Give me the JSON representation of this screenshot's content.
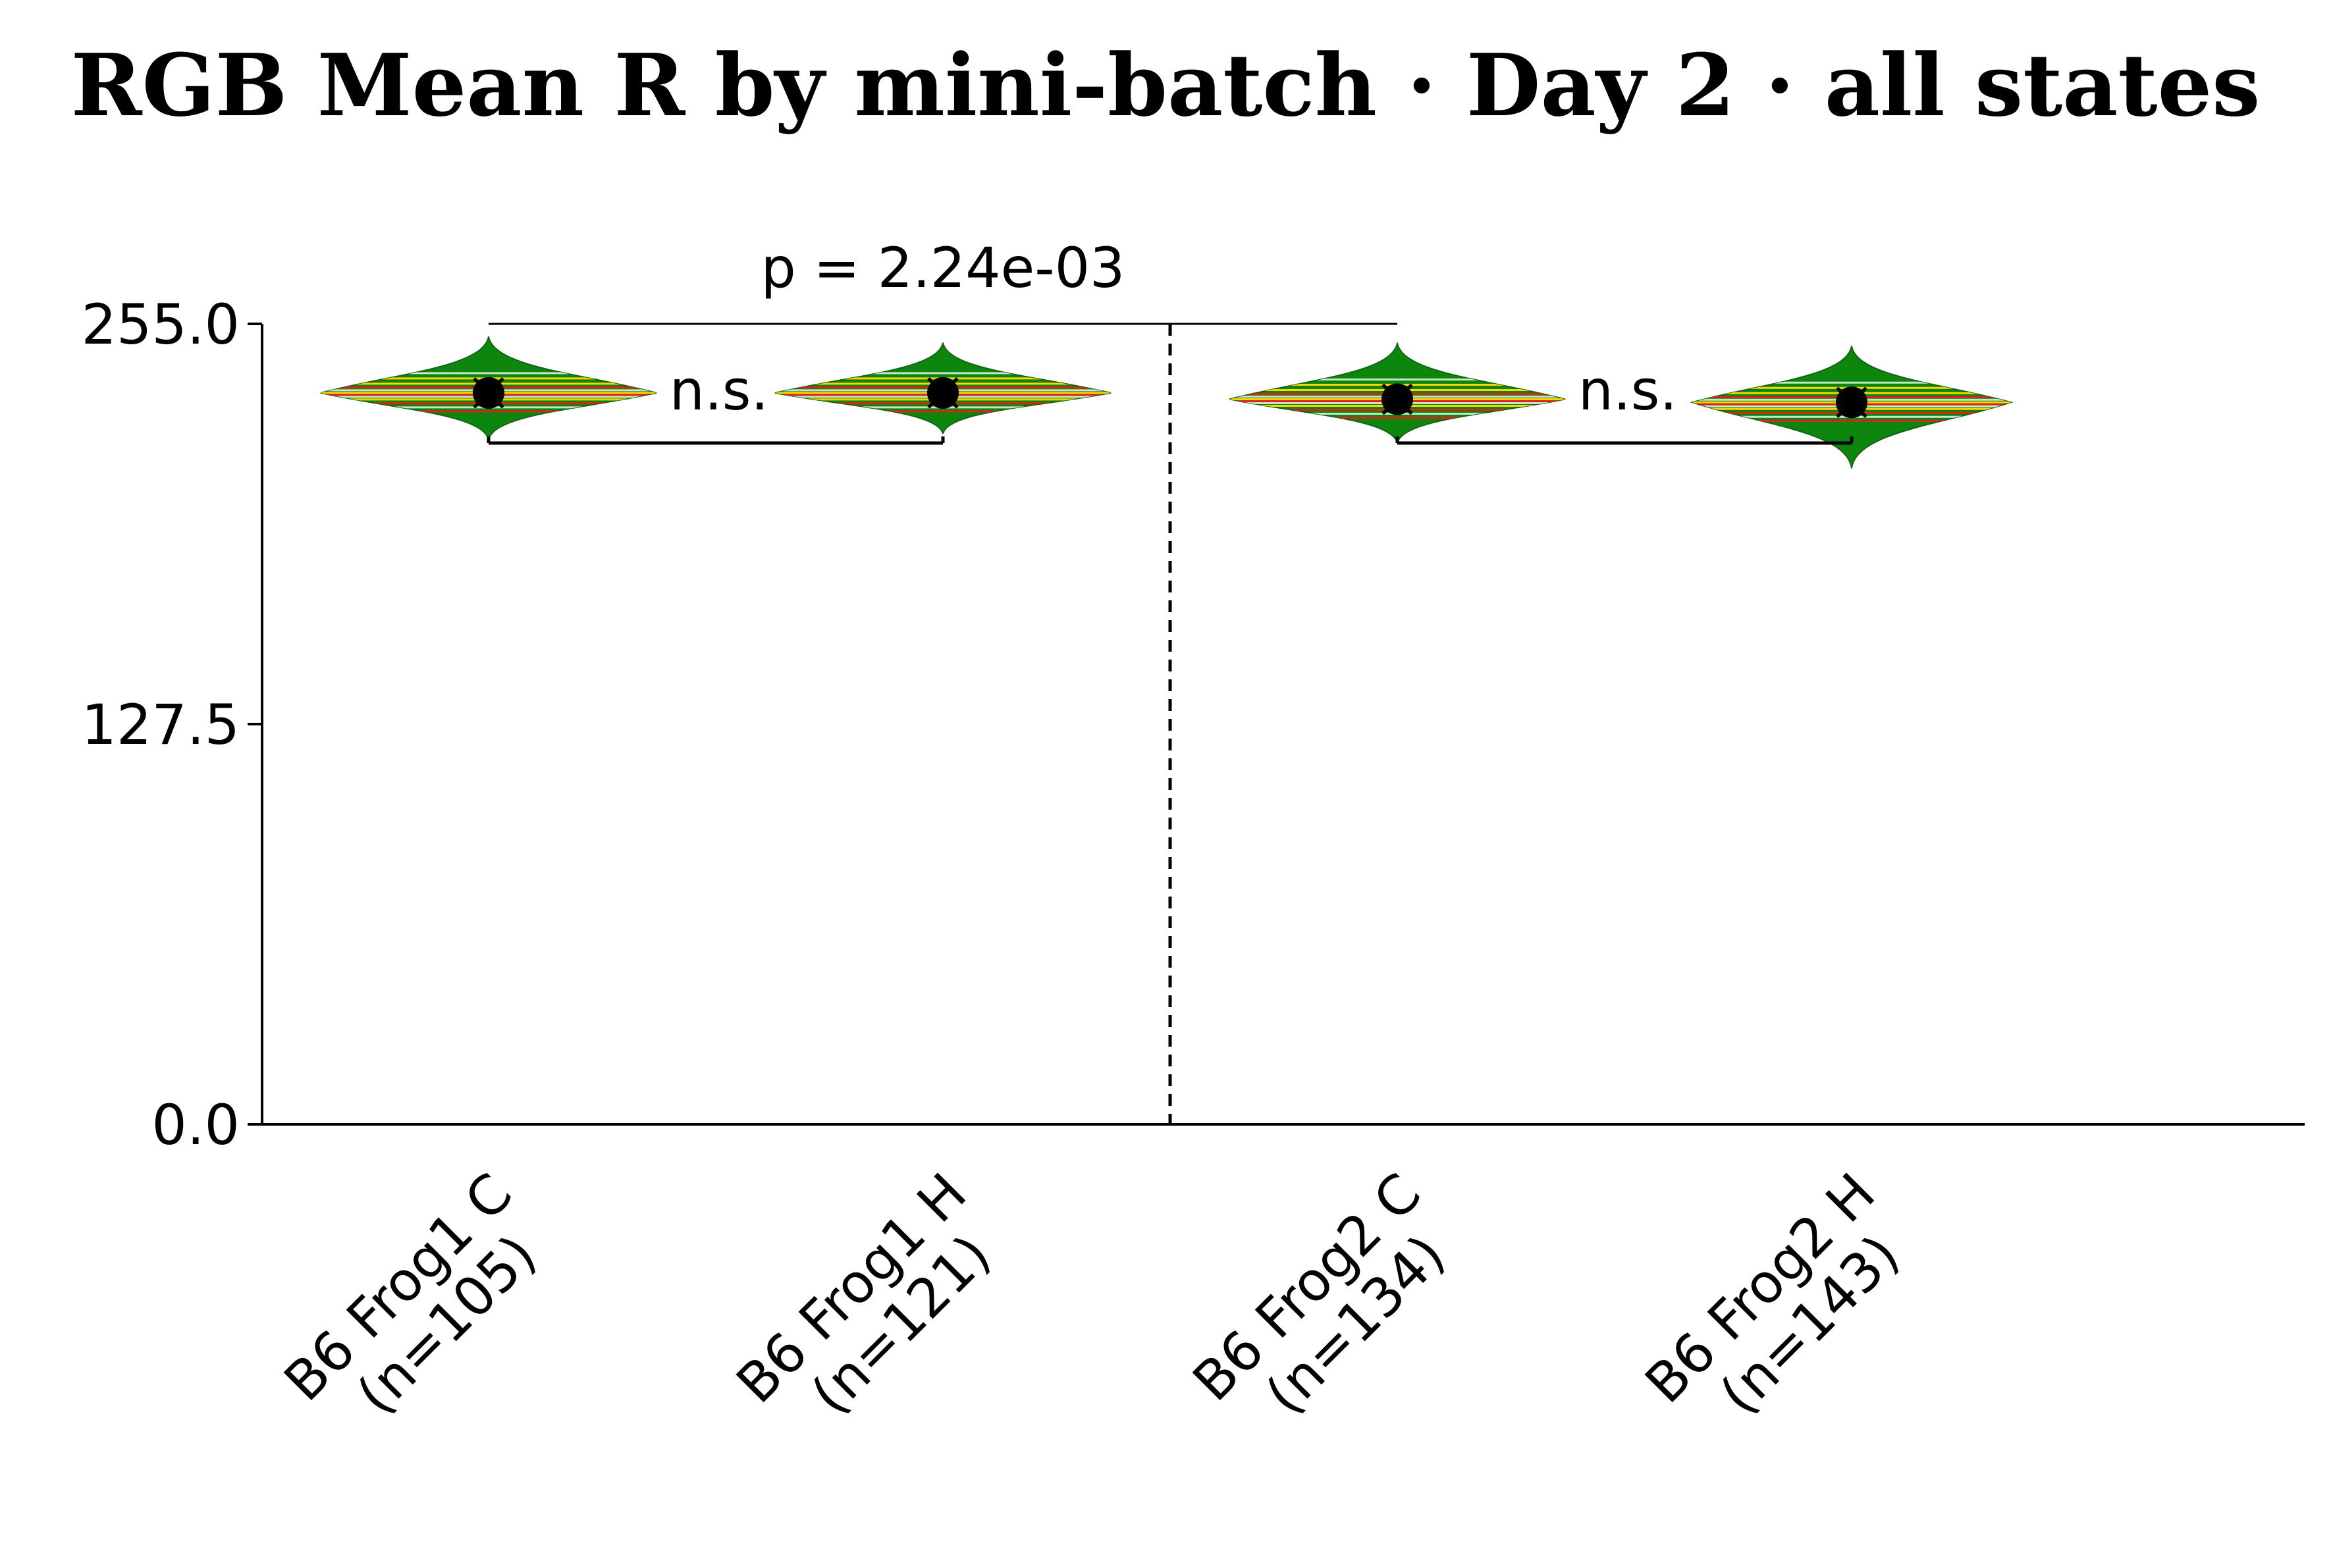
{
  "chart_data": {
    "type": "violin",
    "title": "RGB Mean R by mini-batch · Day 2 · all states",
    "xlabel": "",
    "ylabel": "",
    "ylim": [
      0,
      255
    ],
    "y_ticks": [
      "0.0",
      "127.5",
      "255.0"
    ],
    "y_tick_values": [
      0,
      127.5,
      255
    ],
    "grid": false,
    "categories": [
      {
        "line1": "B6 Frog1 C",
        "line2": "(n=105)",
        "n": 105,
        "mean": 233,
        "min": 218,
        "max": 251,
        "width_scale": 1.0
      },
      {
        "line1": "B6 Frog1 H",
        "line2": "(n=121)",
        "n": 121,
        "mean": 233,
        "min": 220,
        "max": 249,
        "width_scale": 1.0
      },
      {
        "line1": "B6 Frog2 C",
        "line2": "(n=134)",
        "n": 134,
        "mean": 231,
        "min": 217,
        "max": 249,
        "width_scale": 1.0
      },
      {
        "line1": "B6 Frog2 H",
        "line2": "(n=143)",
        "n": 143,
        "mean": 230,
        "min": 209,
        "max": 248,
        "width_scale": 0.95
      }
    ],
    "comparisons": [
      {
        "from": 0,
        "to": 1,
        "label": "n.s."
      },
      {
        "from": 2,
        "to": 3,
        "label": "n.s."
      }
    ],
    "group_comparison": {
      "from": 0,
      "to": 2,
      "label": "p = 2.24e-03"
    },
    "separator_after_category": 1,
    "colors": {
      "violin_fill": "#008000",
      "stripe_yellow": "#ffd400",
      "stripe_red": "#e02020",
      "stripe_light": "#c8e6c8",
      "mean_marker": "#000000",
      "axis": "#000000"
    }
  }
}
